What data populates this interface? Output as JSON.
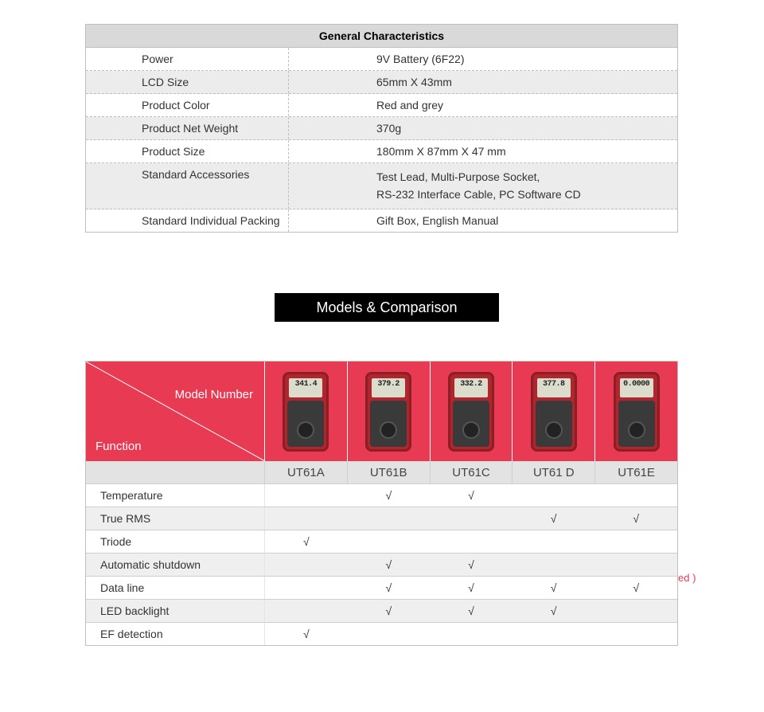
{
  "colors": {
    "header_gray": "#d9d9d9",
    "row_gray": "#ececec",
    "border_gray": "#bfbfbf",
    "section_bg": "#000000",
    "section_fg": "#ffffff",
    "brand_red": "#e83a52",
    "meter_red": "#b0262e",
    "comp_gray": "#e3e3e3",
    "comp_alt": "#efefef",
    "text": "#333333"
  },
  "general_characteristics": {
    "title": "General Characteristics",
    "rows": [
      {
        "label": "Power",
        "value": "9V Battery (6F22)",
        "gray": false
      },
      {
        "label": "LCD Size",
        "value": "65mm X 43mm",
        "gray": true
      },
      {
        "label": "Product Color",
        "value": "Red and grey",
        "gray": false
      },
      {
        "label": "Product Net Weight",
        "value": "370g",
        "gray": true
      },
      {
        "label": "Product Size",
        "value": "180mm X 87mm X 47 mm",
        "gray": false
      },
      {
        "label": "Standard Accessories",
        "value": "Test Lead, Multi-Purpose Socket,\nRS-232 Interface Cable,     PC Software CD",
        "gray": true
      },
      {
        "label": "Standard Individual Packing",
        "value": "Gift Box, English Manual",
        "gray": false
      }
    ]
  },
  "section_title": "Models & Comparison",
  "comparison": {
    "header_model_label": "Model Number",
    "header_function_label": "Function",
    "models": [
      {
        "name": "UT61A",
        "lcd_value": "341.4"
      },
      {
        "name": "UT61B",
        "lcd_value": "379.2"
      },
      {
        "name": "UT61C",
        "lcd_value": "332.2"
      },
      {
        "name": "UT61 D",
        "lcd_value": "377.8"
      },
      {
        "name": "UT61E",
        "lcd_value": "0.0000"
      }
    ],
    "check_mark": "√",
    "features": [
      {
        "name": "Temperature",
        "cells": [
          "",
          "√",
          "√",
          "",
          ""
        ],
        "gray": false
      },
      {
        "name": "True RMS",
        "cells": [
          "",
          "",
          "",
          "√",
          "√"
        ],
        "gray": true
      },
      {
        "name": "Triode",
        "cells": [
          "√",
          "",
          "",
          "",
          ""
        ],
        "gray": false
      },
      {
        "name": "Automatic shutdown",
        "cells": [
          "",
          "√",
          "√",
          "",
          ""
        ],
        "gray": true
      },
      {
        "name": "Data line",
        "cells": [
          "",
          "√",
          "√",
          "√",
          "√"
        ],
        "gray": false
      },
      {
        "name": "LED backlight",
        "cells": [
          "",
          "√",
          "√",
          "√",
          ""
        ],
        "gray": true
      },
      {
        "name": "EF detection",
        "cells": [
          "√",
          "",
          "",
          "",
          ""
        ],
        "gray": false
      }
    ]
  },
  "stray_text": "ed )"
}
